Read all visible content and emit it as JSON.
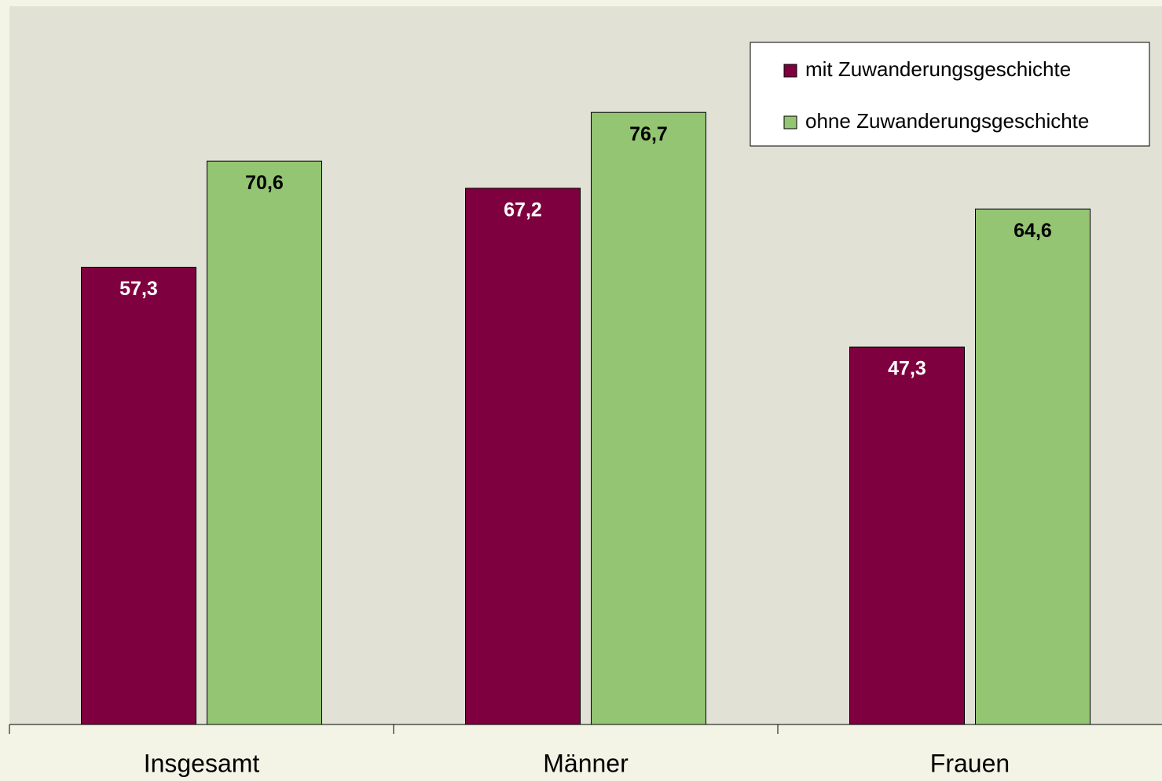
{
  "chart_data": {
    "type": "bar",
    "categories": [
      "Insgesamt",
      "Männer",
      "Frauen"
    ],
    "series": [
      {
        "name": "mit Zuwanderungsgeschichte",
        "color": "#7f003f",
        "label_color": "#ffffff",
        "values": [
          57.3,
          67.2,
          47.3
        ],
        "value_labels": [
          "57,3",
          "67,2",
          "47,3"
        ]
      },
      {
        "name": "ohne Zuwanderungsgeschichte",
        "color": "#93c572",
        "label_color": "#000000",
        "values": [
          70.6,
          76.7,
          64.6
        ],
        "value_labels": [
          "70,6",
          "76,7",
          "64,6"
        ]
      }
    ],
    "ylim": [
      0,
      90
    ],
    "legend": "upper right"
  }
}
